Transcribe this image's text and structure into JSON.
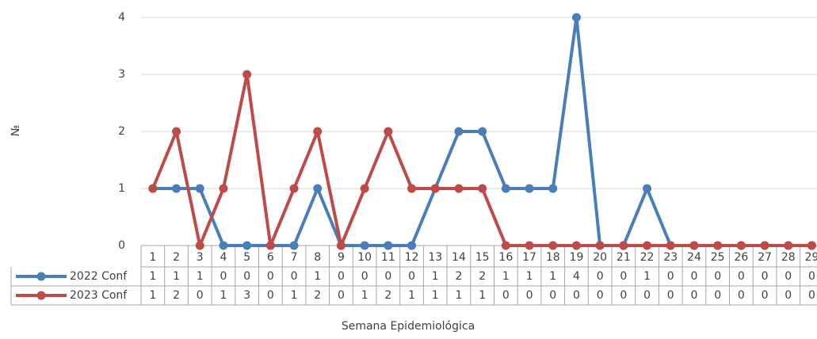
{
  "chart_data": {
    "type": "line",
    "y_label": "№",
    "x_label": "Semana Epidemiológica",
    "categories": [
      "1",
      "2",
      "3",
      "4",
      "5",
      "6",
      "7",
      "8",
      "9",
      "10",
      "11",
      "12",
      "13",
      "14",
      "15",
      "16",
      "17",
      "18",
      "19",
      "20",
      "21",
      "22",
      "23",
      "24",
      "25",
      "26",
      "27",
      "28",
      "29"
    ],
    "series": [
      {
        "name": "2022 Conf",
        "color": "#4a7ebb",
        "values": [
          1,
          1,
          1,
          0,
          0,
          0,
          0,
          1,
          0,
          0,
          0,
          0,
          1,
          2,
          2,
          1,
          1,
          1,
          4,
          0,
          0,
          1,
          0,
          0,
          0,
          0,
          0,
          0,
          0
        ]
      },
      {
        "name": "2023 Conf",
        "color": "#be4b48",
        "values": [
          1,
          2,
          0,
          1,
          3,
          0,
          1,
          2,
          0,
          1,
          2,
          1,
          1,
          1,
          1,
          0,
          0,
          0,
          0,
          0,
          0,
          0,
          0,
          0,
          0,
          0,
          0,
          0,
          0
        ]
      }
    ],
    "ylim": [
      0,
      4
    ],
    "yticks": [
      0,
      1,
      2,
      3,
      4
    ],
    "grid": true,
    "data_table": true
  }
}
